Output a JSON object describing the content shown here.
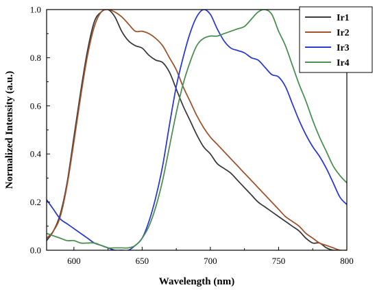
{
  "chart_data": {
    "type": "line",
    "title": "",
    "xlabel": "Wavelength (nm)",
    "ylabel": "Normalized Intensity (a.u.)",
    "xlim": [
      580,
      800
    ],
    "ylim": [
      0.0,
      1.0
    ],
    "xticks": [
      600,
      650,
      700,
      750,
      800
    ],
    "xtick_labels": [
      "600",
      "650",
      "700",
      "750",
      "800"
    ],
    "yticks": [
      0.0,
      0.2,
      0.4,
      0.6,
      0.8,
      1.0
    ],
    "ytick_labels": [
      "0.0",
      "0.2",
      "0.4",
      "0.6",
      "0.8",
      "1.0"
    ],
    "grid": false,
    "legend_position": "top-right",
    "series": [
      {
        "name": "Ir1",
        "color": "#3a3a3a",
        "x": [
          580,
          585,
          590,
          595,
          600,
          605,
          610,
          615,
          620,
          625,
          630,
          635,
          640,
          645,
          650,
          655,
          660,
          665,
          670,
          675,
          680,
          685,
          690,
          695,
          700,
          705,
          710,
          715,
          720,
          725,
          730,
          735,
          740,
          745,
          750,
          755,
          760,
          765,
          770,
          775,
          780,
          785,
          790,
          795
        ],
        "y": [
          0.04,
          0.08,
          0.15,
          0.28,
          0.47,
          0.66,
          0.83,
          0.95,
          0.99,
          1.0,
          0.97,
          0.91,
          0.87,
          0.85,
          0.84,
          0.81,
          0.79,
          0.78,
          0.74,
          0.67,
          0.6,
          0.54,
          0.48,
          0.43,
          0.4,
          0.36,
          0.34,
          0.32,
          0.29,
          0.26,
          0.23,
          0.2,
          0.18,
          0.16,
          0.14,
          0.12,
          0.1,
          0.08,
          0.05,
          0.03,
          0.03,
          0.01,
          0.0,
          0.0
        ]
      },
      {
        "name": "Ir2",
        "color": "#a0522d",
        "x": [
          580,
          585,
          590,
          595,
          600,
          605,
          610,
          615,
          620,
          625,
          630,
          635,
          640,
          645,
          650,
          655,
          660,
          665,
          670,
          675,
          680,
          685,
          690,
          695,
          700,
          705,
          710,
          715,
          720,
          725,
          730,
          735,
          740,
          745,
          750,
          755,
          760,
          765,
          770,
          775,
          780,
          785,
          790,
          795,
          800
        ],
        "y": [
          0.05,
          0.08,
          0.14,
          0.27,
          0.45,
          0.64,
          0.81,
          0.93,
          0.99,
          1.0,
          0.99,
          0.97,
          0.94,
          0.91,
          0.91,
          0.9,
          0.88,
          0.85,
          0.8,
          0.75,
          0.68,
          0.62,
          0.56,
          0.51,
          0.47,
          0.44,
          0.41,
          0.38,
          0.35,
          0.32,
          0.29,
          0.26,
          0.23,
          0.2,
          0.17,
          0.14,
          0.12,
          0.1,
          0.07,
          0.05,
          0.03,
          0.02,
          0.01,
          0.0,
          0.0
        ]
      },
      {
        "name": "Ir3",
        "color": "#2b3bd1",
        "x": [
          580,
          585,
          590,
          595,
          600,
          605,
          610,
          615,
          620,
          625,
          630,
          635,
          640,
          645,
          650,
          655,
          660,
          665,
          670,
          675,
          680,
          685,
          690,
          695,
          700,
          705,
          710,
          715,
          720,
          725,
          730,
          735,
          740,
          745,
          750,
          755,
          760,
          765,
          770,
          775,
          780,
          785,
          790,
          795,
          800
        ],
        "y": [
          0.21,
          0.17,
          0.13,
          0.11,
          0.09,
          0.07,
          0.05,
          0.03,
          0.02,
          0.01,
          0.0,
          0.0,
          0.0,
          0.02,
          0.05,
          0.12,
          0.22,
          0.35,
          0.52,
          0.68,
          0.8,
          0.9,
          0.97,
          1.0,
          0.98,
          0.92,
          0.87,
          0.84,
          0.83,
          0.82,
          0.8,
          0.79,
          0.76,
          0.73,
          0.72,
          0.68,
          0.61,
          0.54,
          0.48,
          0.43,
          0.39,
          0.34,
          0.28,
          0.22,
          0.19
        ]
      },
      {
        "name": "Ir4",
        "color": "#4c8f50",
        "x": [
          580,
          585,
          590,
          595,
          600,
          605,
          610,
          615,
          620,
          625,
          630,
          635,
          640,
          645,
          650,
          655,
          660,
          665,
          670,
          675,
          680,
          685,
          690,
          695,
          700,
          705,
          710,
          715,
          720,
          725,
          730,
          735,
          740,
          745,
          750,
          755,
          760,
          765,
          770,
          775,
          780,
          785,
          790,
          795,
          800
        ],
        "y": [
          0.07,
          0.06,
          0.05,
          0.04,
          0.04,
          0.03,
          0.03,
          0.03,
          0.02,
          0.01,
          0.01,
          0.01,
          0.01,
          0.02,
          0.05,
          0.1,
          0.18,
          0.29,
          0.43,
          0.57,
          0.69,
          0.78,
          0.85,
          0.88,
          0.89,
          0.89,
          0.9,
          0.91,
          0.92,
          0.93,
          0.96,
          0.99,
          1.0,
          0.98,
          0.91,
          0.85,
          0.77,
          0.69,
          0.62,
          0.54,
          0.47,
          0.41,
          0.35,
          0.31,
          0.28
        ]
      }
    ]
  }
}
